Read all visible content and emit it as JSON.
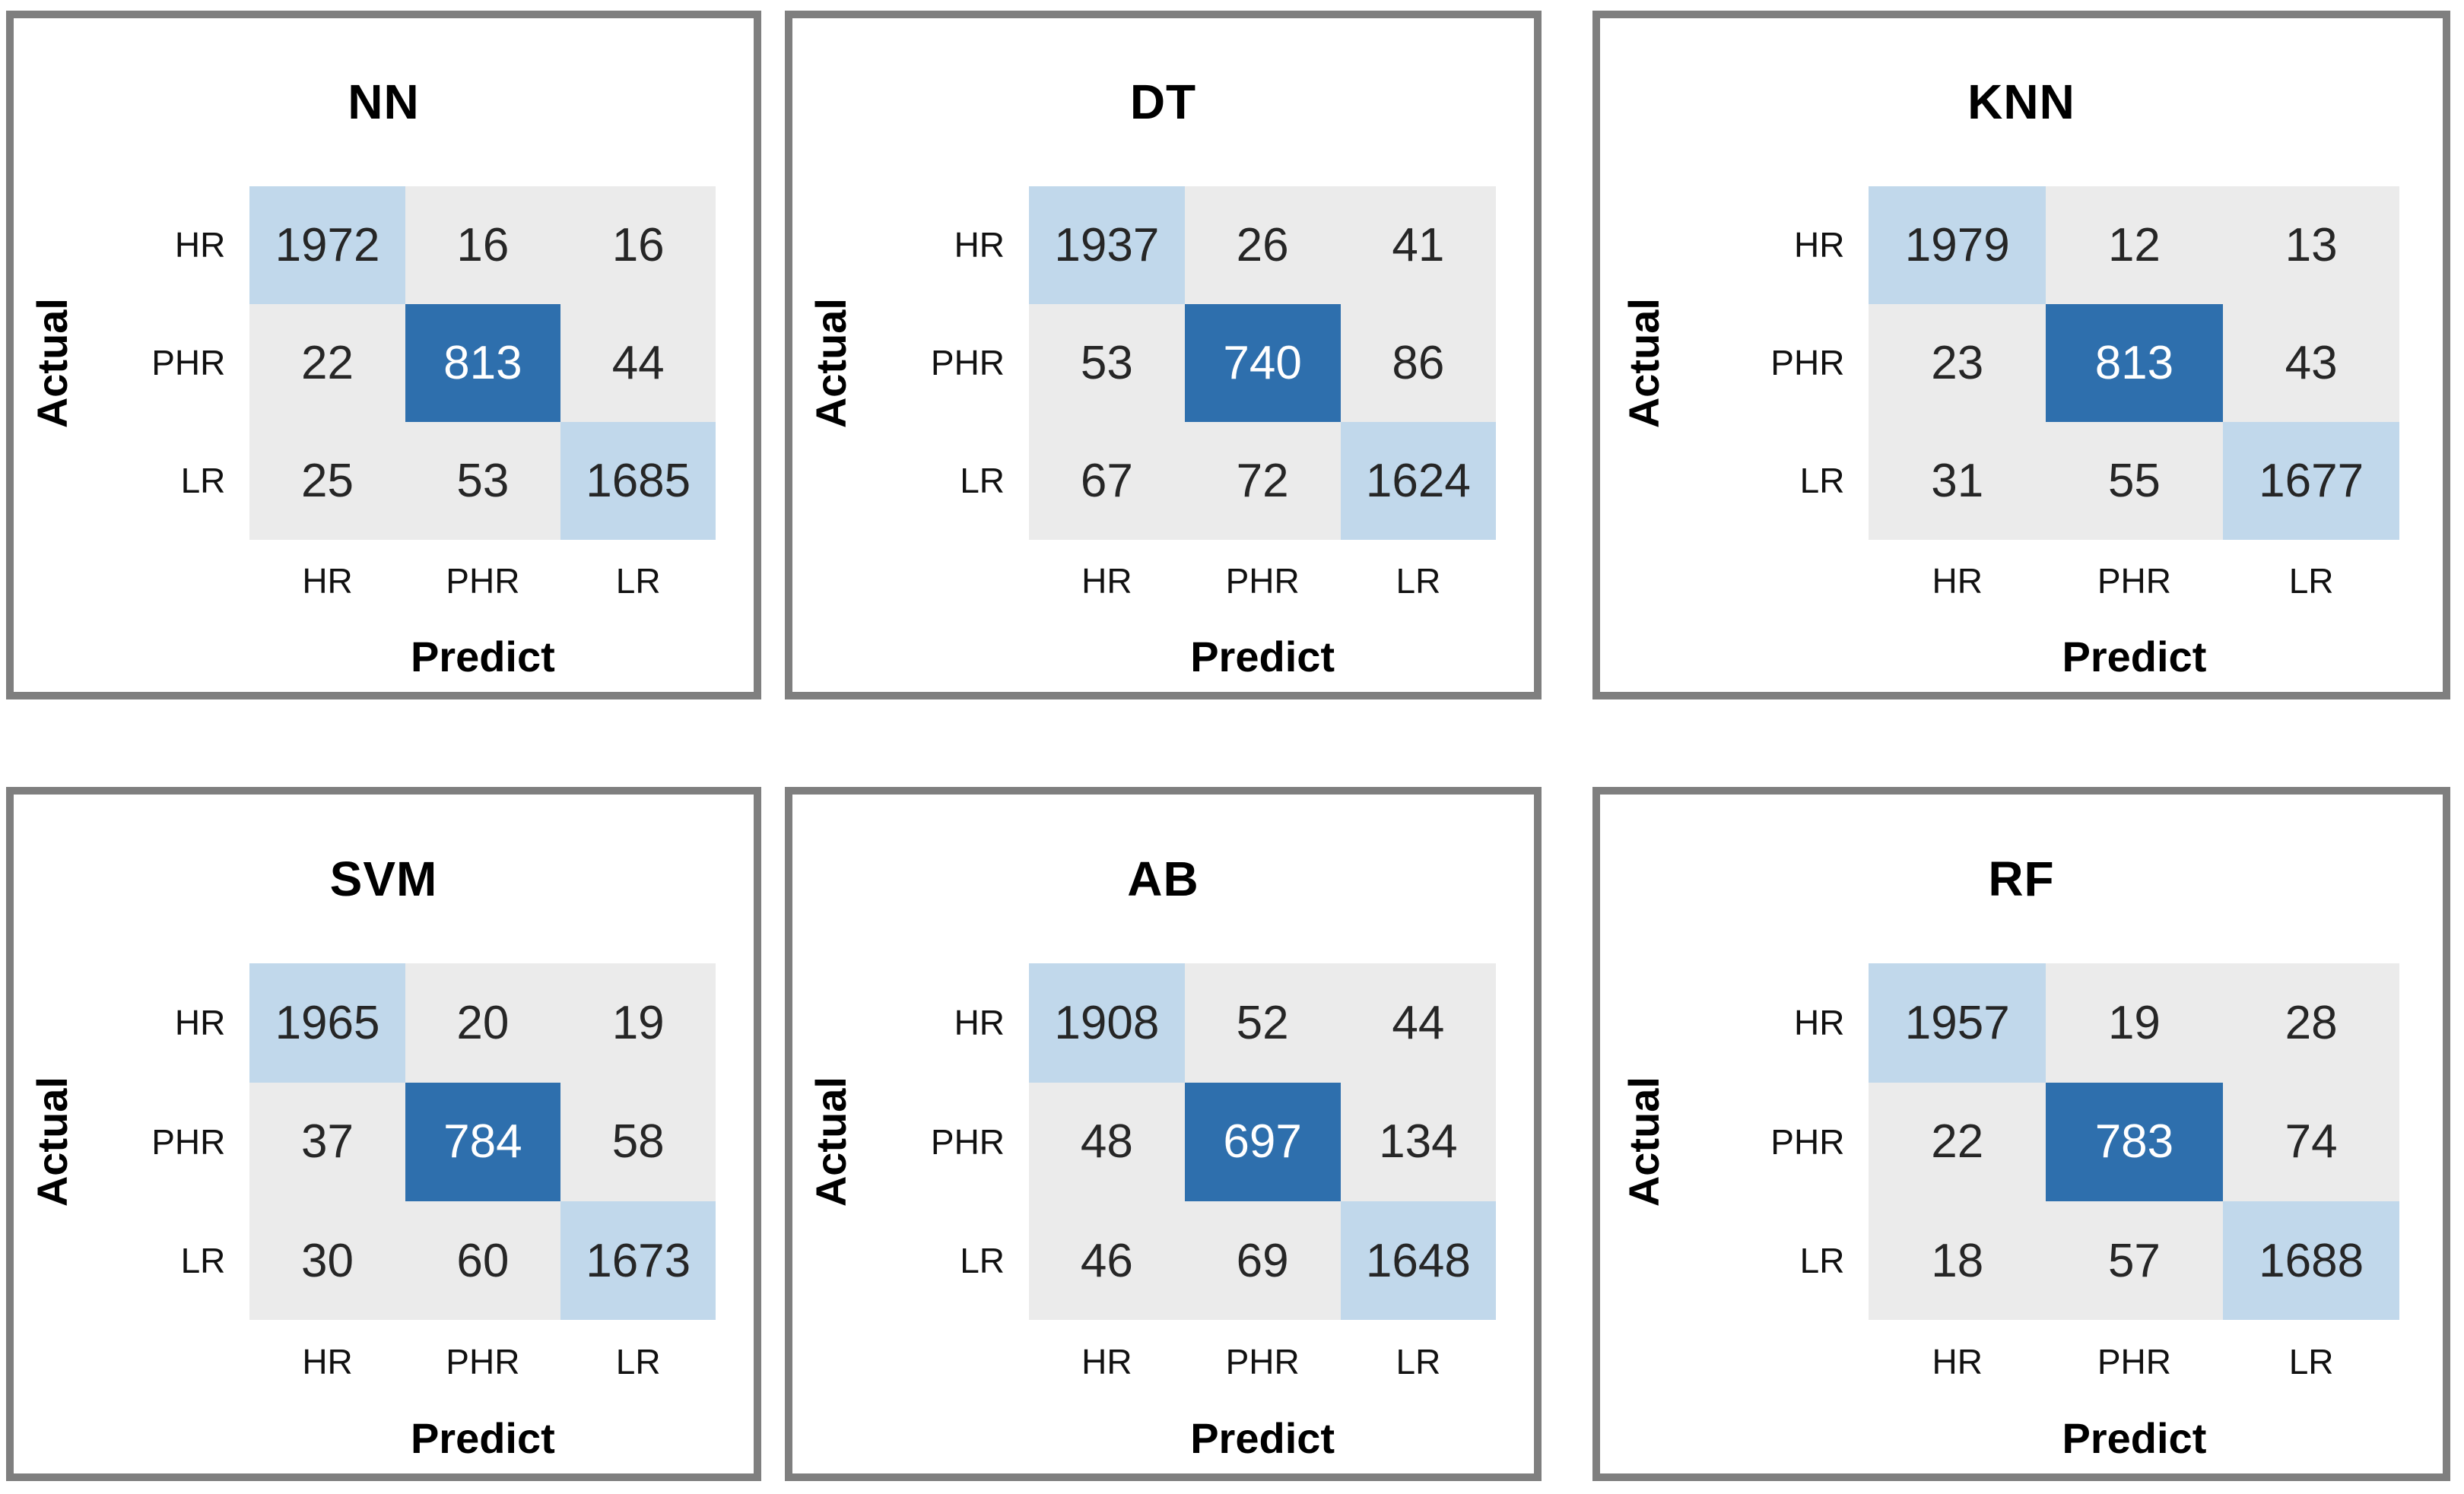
{
  "figure": {
    "x_axis_label": "Predict",
    "y_axis_label": "Actual",
    "class_labels": [
      "HR",
      "PHR",
      "LR"
    ],
    "colors": {
      "panel_border": "#7f7f7f",
      "cell_off_diagonal": "#ebebeb",
      "cell_diagonal_light": "#c1d8eb",
      "cell_diagonal_dark": "#2e6fad",
      "number_text_dark": "#262626",
      "number_text_light": "#ffffff",
      "label_text": "#111111"
    }
  },
  "chart_data": [
    {
      "type": "heatmap",
      "title": "NN",
      "xlabel": "Predict",
      "ylabel": "Actual",
      "x_categories": [
        "HR",
        "PHR",
        "LR"
      ],
      "y_categories": [
        "HR",
        "PHR",
        "LR"
      ],
      "values": [
        [
          1972,
          16,
          16
        ],
        [
          22,
          813,
          44
        ],
        [
          25,
          53,
          1685
        ]
      ]
    },
    {
      "type": "heatmap",
      "title": "DT",
      "xlabel": "Predict",
      "ylabel": "Actual",
      "x_categories": [
        "HR",
        "PHR",
        "LR"
      ],
      "y_categories": [
        "HR",
        "PHR",
        "LR"
      ],
      "values": [
        [
          1937,
          26,
          41
        ],
        [
          53,
          740,
          86
        ],
        [
          67,
          72,
          1624
        ]
      ]
    },
    {
      "type": "heatmap",
      "title": "KNN",
      "xlabel": "Predict",
      "ylabel": "Actual",
      "x_categories": [
        "HR",
        "PHR",
        "LR"
      ],
      "y_categories": [
        "HR",
        "PHR",
        "LR"
      ],
      "values": [
        [
          1979,
          12,
          13
        ],
        [
          23,
          813,
          43
        ],
        [
          31,
          55,
          1677
        ]
      ]
    },
    {
      "type": "heatmap",
      "title": "SVM",
      "xlabel": "Predict",
      "ylabel": "Actual",
      "x_categories": [
        "HR",
        "PHR",
        "LR"
      ],
      "y_categories": [
        "HR",
        "PHR",
        "LR"
      ],
      "values": [
        [
          1965,
          20,
          19
        ],
        [
          37,
          784,
          58
        ],
        [
          30,
          60,
          1673
        ]
      ]
    },
    {
      "type": "heatmap",
      "title": "AB",
      "xlabel": "Predict",
      "ylabel": "Actual",
      "x_categories": [
        "HR",
        "PHR",
        "LR"
      ],
      "y_categories": [
        "HR",
        "PHR",
        "LR"
      ],
      "values": [
        [
          1908,
          52,
          44
        ],
        [
          48,
          697,
          134
        ],
        [
          46,
          69,
          1648
        ]
      ]
    },
    {
      "type": "heatmap",
      "title": "RF",
      "xlabel": "Predict",
      "ylabel": "Actual",
      "x_categories": [
        "HR",
        "PHR",
        "LR"
      ],
      "y_categories": [
        "HR",
        "PHR",
        "LR"
      ],
      "values": [
        [
          1957,
          19,
          28
        ],
        [
          22,
          783,
          74
        ],
        [
          18,
          57,
          1688
        ]
      ]
    }
  ]
}
